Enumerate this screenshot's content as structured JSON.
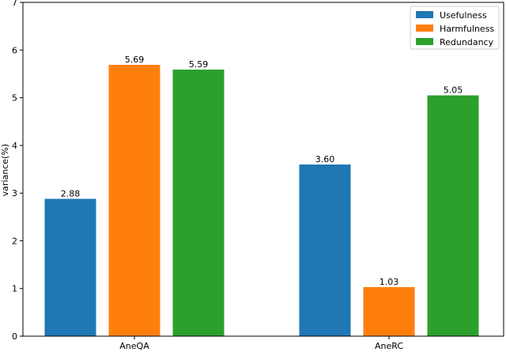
{
  "chart_data": {
    "type": "bar",
    "title": "",
    "xlabel": "",
    "ylabel": "variance(%)",
    "ylim": [
      0,
      7
    ],
    "yticks": [
      0,
      1,
      2,
      3,
      4,
      5,
      6,
      7
    ],
    "categories": [
      "AneQA",
      "AneRC"
    ],
    "grid": false,
    "legend_position": "top-right",
    "series": [
      {
        "name": "Usefulness",
        "color": "#1f77b4",
        "values": [
          2.88,
          3.6
        ],
        "labels": [
          "2.88",
          "3.60"
        ]
      },
      {
        "name": "Harmfulness",
        "color": "#ff7f0e",
        "values": [
          5.69,
          1.03
        ],
        "labels": [
          "5.69",
          "1.03"
        ]
      },
      {
        "name": "Redundancy",
        "color": "#2ca02c",
        "values": [
          5.59,
          5.05
        ],
        "labels": [
          "5.59",
          "5.05"
        ]
      }
    ]
  }
}
